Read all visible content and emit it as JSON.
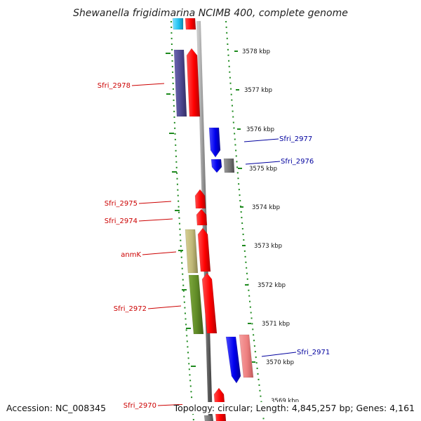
{
  "title": "Shewanella frigidimarina NCIMB 400, complete genome",
  "footer": {
    "accession": "Accession: NC_008345",
    "summary": "Topology: circular; Length: 4,845,257 bp; Genes: 4,161"
  },
  "colors": {
    "forward_label": "#cc0000",
    "reverse_label": "#00009e",
    "backbone": "#8a8a8a",
    "dotted_track": "#1e8a1e"
  },
  "ticks": [
    {
      "label": "3578 kbp"
    },
    {
      "label": "3577 kbp"
    },
    {
      "label": "3576 kbp"
    },
    {
      "label": "3575 kbp"
    },
    {
      "label": "3574 kbp"
    },
    {
      "label": "3573 kbp"
    },
    {
      "label": "3572 kbp"
    },
    {
      "label": "3571 kbp"
    },
    {
      "label": "3570 kbp"
    },
    {
      "label": "3569 kbp"
    }
  ],
  "genes": [
    {
      "label": "Sfri_2978",
      "strand": "forward"
    },
    {
      "label": "Sfri_2977",
      "strand": "reverse"
    },
    {
      "label": "Sfri_2976",
      "strand": "reverse"
    },
    {
      "label": "Sfri_2975",
      "strand": "forward"
    },
    {
      "label": "Sfri_2974",
      "strand": "forward"
    },
    {
      "label": "anmK",
      "strand": "forward"
    },
    {
      "label": "Sfri_2972",
      "strand": "forward"
    },
    {
      "label": "Sfri_2971",
      "strand": "reverse"
    },
    {
      "label": "Sfri_2970",
      "strand": "forward"
    }
  ]
}
